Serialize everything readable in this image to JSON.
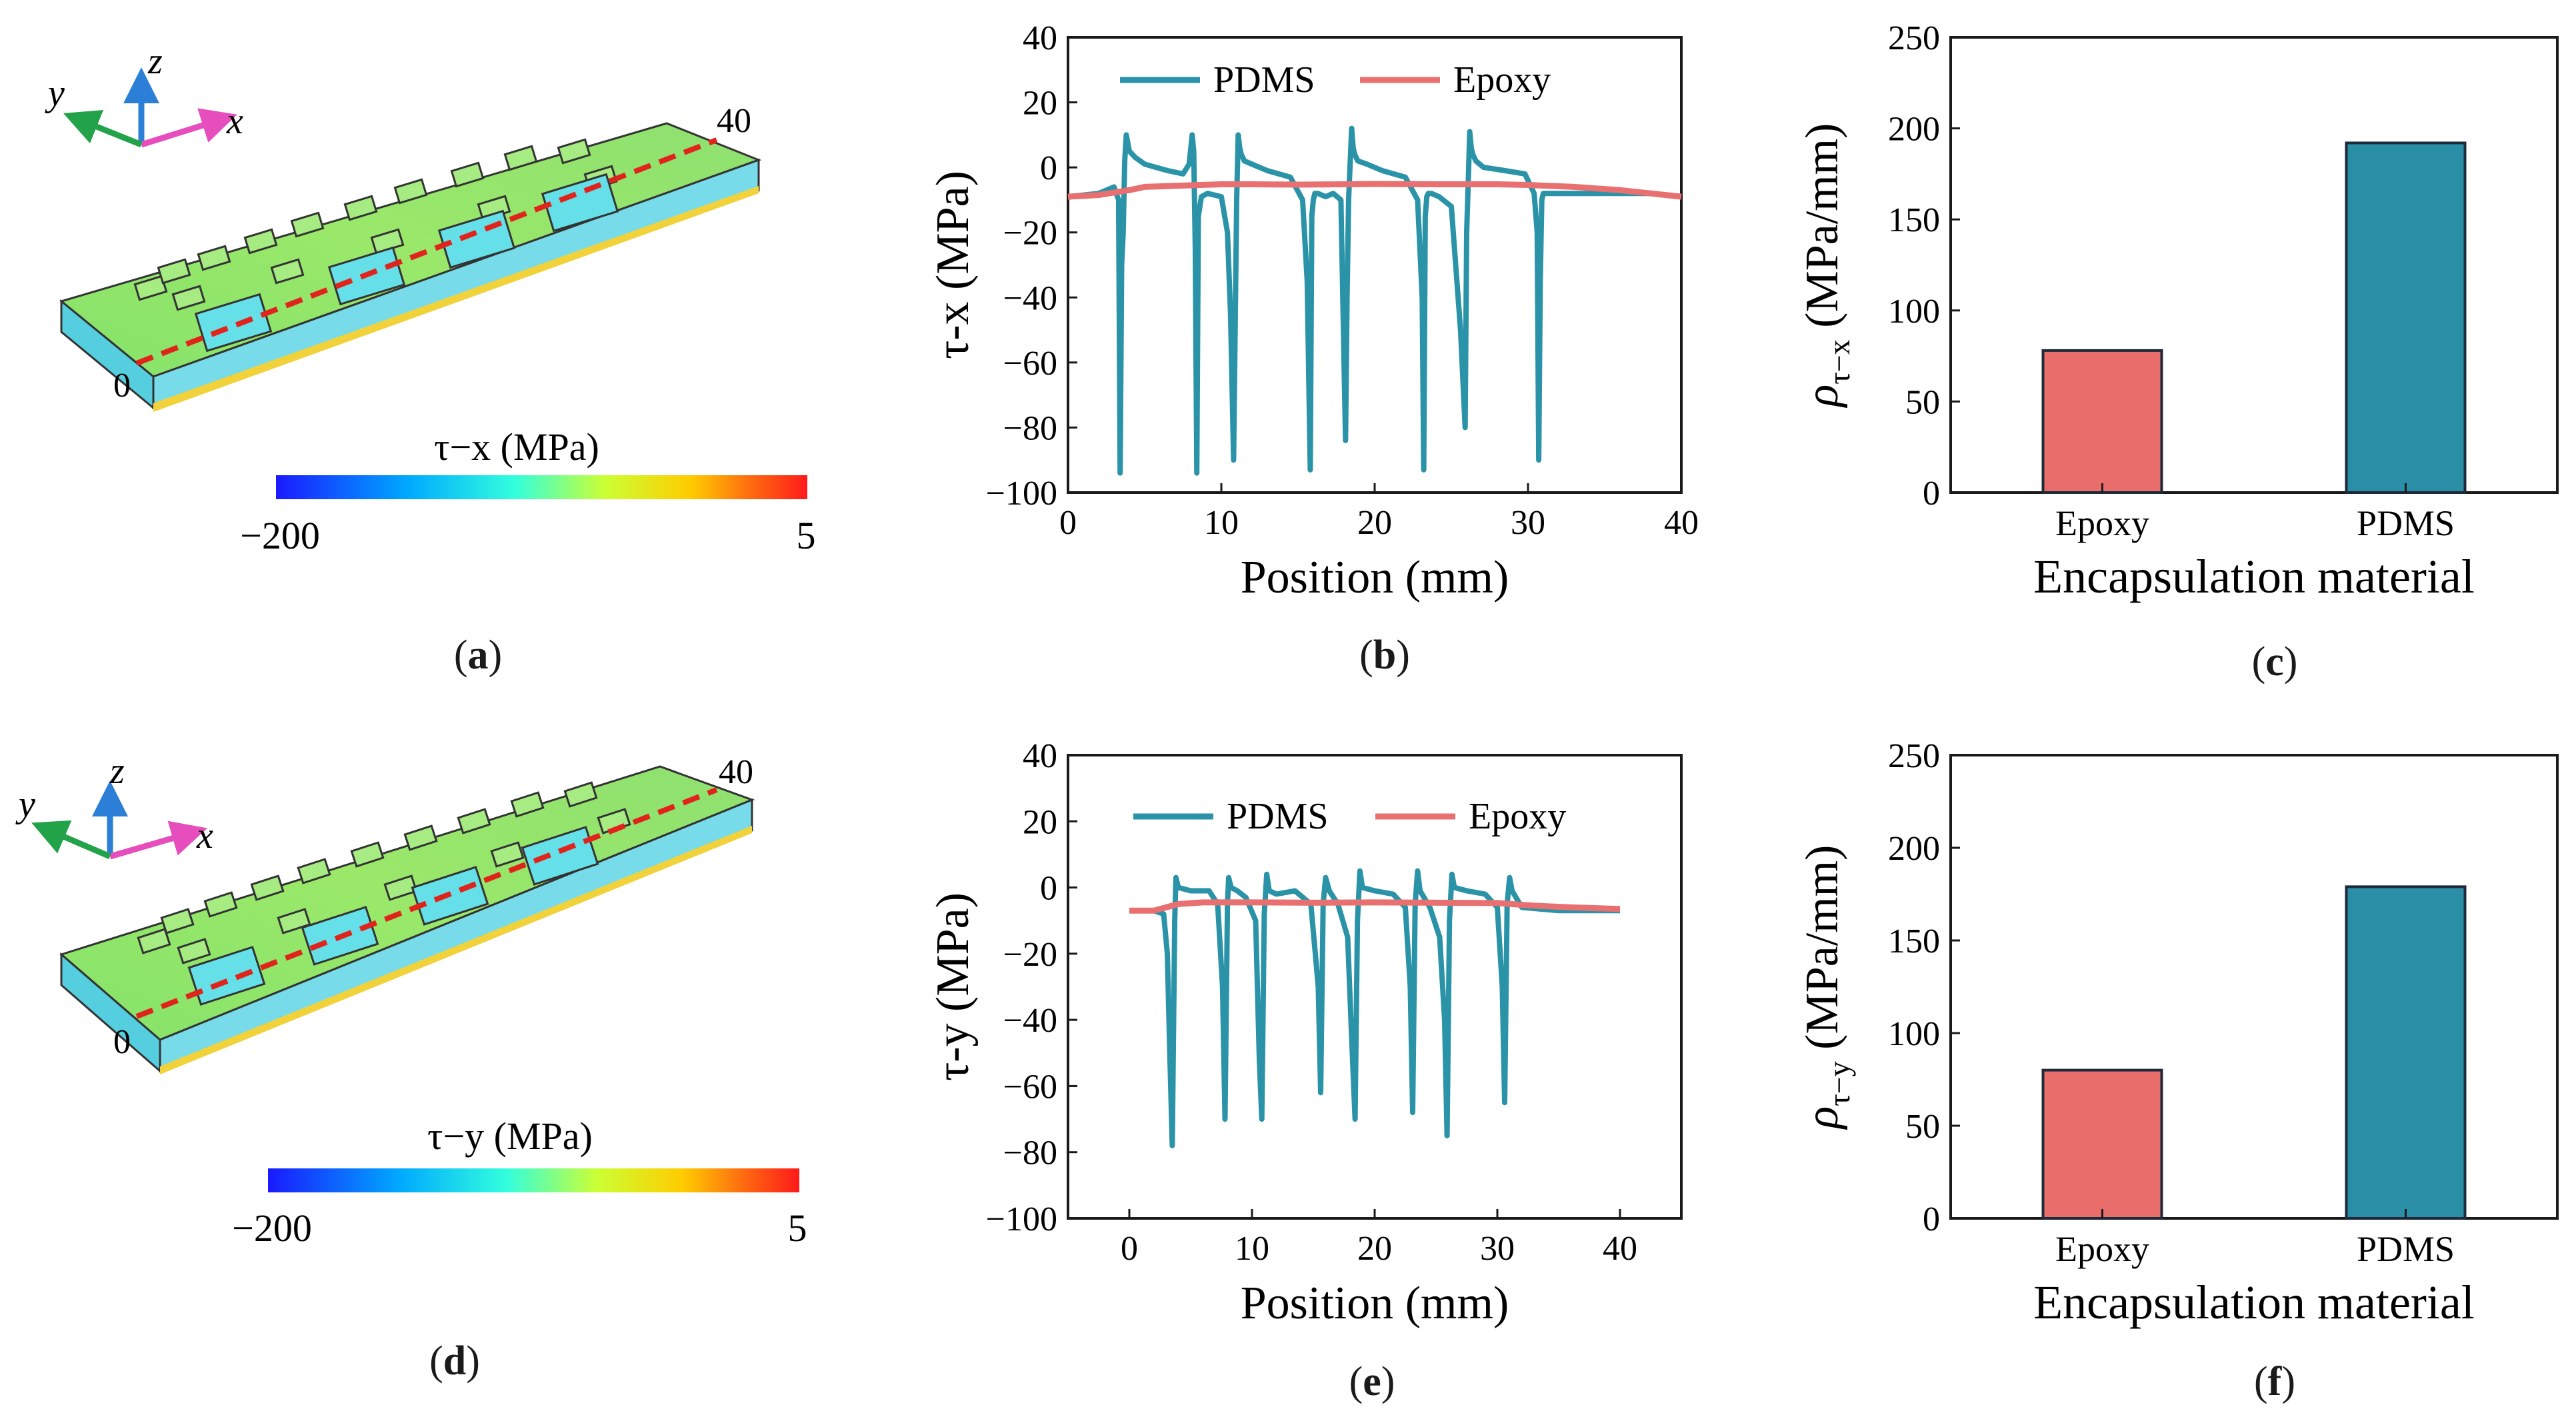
{
  "panel_labels": {
    "a": "a",
    "b": "b",
    "c": "c",
    "d": "d",
    "e": "e",
    "f": "f"
  },
  "colors": {
    "pdms": "#2a93a8",
    "epoxy": "#e87070",
    "bar_pdms": "#2a8ea6",
    "bar_epoxy": "#e86d6b",
    "path": "#e0241c"
  },
  "panel_a": {
    "axes": {
      "x": "x",
      "y": "y",
      "z": "z"
    },
    "start": "0",
    "end": "40",
    "colorbar": {
      "label": "τ−x (MPa)",
      "min": "−200",
      "max": "5"
    }
  },
  "panel_d": {
    "axes": {
      "x": "x",
      "y": "y",
      "z": "z"
    },
    "start": "0",
    "end": "40",
    "colorbar": {
      "label": "τ−y (MPa)",
      "min": "−200",
      "max": "5"
    }
  },
  "chart_data": [
    {
      "panel": "b",
      "type": "line",
      "xlabel": "Position (mm)",
      "ylabel": "τ-x (MPa)",
      "xlim": [
        0,
        40
      ],
      "ylim": [
        -100,
        40
      ],
      "xticks": [
        0,
        10,
        20,
        30,
        40
      ],
      "yticks": [
        -100,
        -80,
        -60,
        -40,
        -20,
        0,
        20,
        40
      ],
      "legend_position": "top",
      "series": [
        {
          "name": "PDMS",
          "x": [
            0,
            2.0,
            3.0,
            3.3,
            3.4,
            3.5,
            3.6,
            3.7,
            3.8,
            4.0,
            4.4,
            5.0,
            6.5,
            7.5,
            7.9,
            8.1,
            8.2,
            8.3,
            8.4,
            8.5,
            8.7,
            9.1,
            10.0,
            10.4,
            10.6,
            10.8,
            11.0,
            11.1,
            11.2,
            11.3,
            11.5,
            12.0,
            13.0,
            14.5,
            15.3,
            15.6,
            15.8,
            15.9,
            16.0,
            16.1,
            16.3,
            16.8,
            17.3,
            17.8,
            18.1,
            18.2,
            18.3,
            18.5,
            18.6,
            18.7,
            18.9,
            19.5,
            20.5,
            22.0,
            22.8,
            23.1,
            23.2,
            23.3,
            23.4,
            23.5,
            23.7,
            24.2,
            25.0,
            25.6,
            25.9,
            26.0,
            26.1,
            26.2,
            26.3,
            26.4,
            26.6,
            27.1,
            28.5,
            29.8,
            30.4,
            30.6,
            30.7,
            30.8,
            30.9,
            31.0,
            31.2,
            31.5,
            32.5,
            35,
            38,
            40
          ],
          "y": [
            -9,
            -8,
            -6,
            -10,
            -94,
            -30,
            -20,
            2,
            10,
            5,
            3,
            1,
            -1,
            -2,
            1,
            10,
            5,
            -25,
            -94,
            -15,
            -9,
            -8,
            -9,
            -20,
            -45,
            -90,
            -10,
            10,
            6,
            4,
            2,
            1,
            -1,
            -3,
            -10,
            -35,
            -93,
            -15,
            -10,
            -8,
            -8,
            -9,
            -8,
            -10,
            -84,
            -40,
            -10,
            12,
            6,
            4,
            2,
            1,
            -1,
            -3,
            -10,
            -40,
            -93,
            -15,
            -9,
            -8,
            -8,
            -9,
            -12,
            -50,
            -80,
            -20,
            -5,
            11,
            6,
            4,
            2,
            0,
            -1,
            -2,
            -8,
            -20,
            -90,
            -35,
            -10,
            -8,
            -8,
            -8,
            -8,
            -8,
            -8,
            -9
          ]
        },
        {
          "name": "Epoxy",
          "x": [
            0,
            2,
            4,
            5,
            8,
            10,
            12,
            15,
            18,
            20,
            24,
            28,
            30,
            33,
            36,
            38,
            40
          ],
          "y": [
            -9,
            -8.5,
            -7,
            -6,
            -5.5,
            -5.2,
            -5.2,
            -5.3,
            -5.2,
            -5.1,
            -5.2,
            -5.2,
            -5.4,
            -6,
            -7,
            -8,
            -9
          ]
        }
      ]
    },
    {
      "panel": "c",
      "type": "bar",
      "xlabel": "Encapsulation material",
      "ylabel_symbol": "ρ",
      "ylabel_sub": "τ−x",
      "ylabel_unit": "(MPa/mm)",
      "categories": [
        "Epoxy",
        "PDMS"
      ],
      "values": [
        78,
        192
      ],
      "ylim": [
        0,
        250
      ],
      "yticks": [
        0,
        50,
        100,
        150,
        200,
        250
      ]
    },
    {
      "panel": "e",
      "type": "line",
      "xlabel": "Position (mm)",
      "ylabel": "τ-y (MPa)",
      "xlim": [
        -5,
        45
      ],
      "ylim": [
        -100,
        40
      ],
      "xticks": [
        0,
        10,
        20,
        30,
        40
      ],
      "yticks": [
        -100,
        -80,
        -60,
        -40,
        -20,
        0,
        20,
        40
      ],
      "legend_position": "top",
      "series": [
        {
          "name": "PDMS",
          "x": [
            0,
            2.0,
            2.8,
            3.1,
            3.3,
            3.5,
            3.7,
            3.8,
            4.0,
            5.0,
            6.5,
            7.2,
            7.6,
            7.8,
            8.0,
            8.1,
            8.3,
            8.8,
            9.5,
            10.3,
            10.6,
            10.8,
            11.0,
            11.2,
            11.4,
            12.0,
            13.5,
            14.8,
            15.4,
            15.6,
            15.8,
            16.0,
            16.3,
            17.0,
            17.8,
            18.1,
            18.4,
            18.6,
            18.8,
            19.0,
            20.0,
            21.5,
            22.5,
            22.9,
            23.1,
            23.3,
            23.5,
            23.7,
            24.5,
            25.3,
            25.7,
            25.9,
            26.1,
            26.3,
            26.5,
            27.5,
            29.0,
            30.0,
            30.4,
            30.6,
            30.8,
            31.0,
            31.2,
            32.0,
            35,
            38,
            40
          ],
          "y": [
            -7,
            -7,
            -8,
            -20,
            -50,
            -78,
            -10,
            3,
            0,
            -1,
            -1,
            -5,
            -30,
            -70,
            -5,
            3,
            0,
            -1,
            -3,
            -10,
            -52,
            -70,
            -8,
            4,
            -1,
            -2,
            -1,
            -5,
            -30,
            -62,
            -5,
            3,
            -1,
            -5,
            -15,
            -43,
            -70,
            -10,
            5,
            0,
            -1,
            -2,
            -6,
            -30,
            -68,
            -5,
            5,
            -1,
            -6,
            -15,
            -40,
            -75,
            -10,
            4,
            0,
            -1,
            -2,
            -6,
            -30,
            -65,
            -5,
            3,
            -1,
            -6,
            -7,
            -7,
            -7
          ]
        },
        {
          "name": "Epoxy",
          "x": [
            0,
            2,
            4,
            6,
            10,
            15,
            20,
            25,
            30,
            33,
            36,
            40
          ],
          "y": [
            -7,
            -7,
            -5,
            -4.5,
            -4.5,
            -4.6,
            -4.5,
            -4.6,
            -4.7,
            -5.5,
            -6,
            -6.5
          ]
        }
      ]
    },
    {
      "panel": "f",
      "type": "bar",
      "xlabel": "Encapsulation material",
      "ylabel_symbol": "ρ",
      "ylabel_sub": "τ−y",
      "ylabel_unit": "(MPa/mm)",
      "categories": [
        "Epoxy",
        "PDMS"
      ],
      "values": [
        80,
        179
      ],
      "ylim": [
        0,
        250
      ],
      "yticks": [
        0,
        50,
        100,
        150,
        200,
        250
      ]
    }
  ]
}
